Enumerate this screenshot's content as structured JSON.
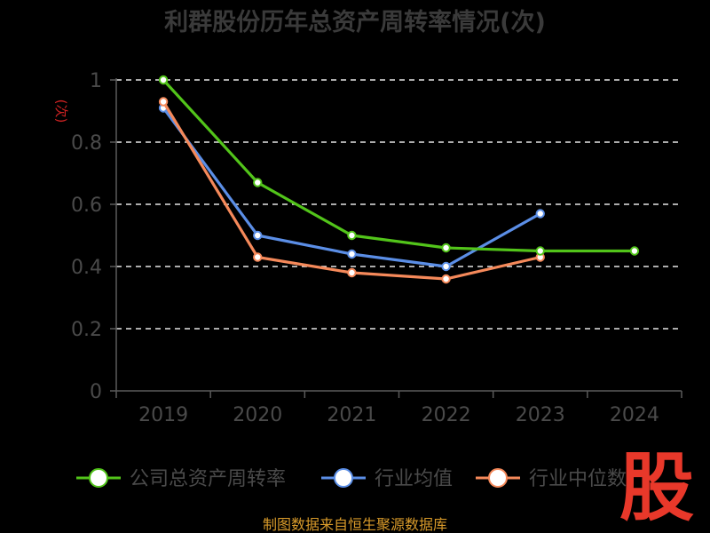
{
  "chart_data": {
    "type": "line",
    "title": "利群股份历年总资产周转率情况(次)",
    "ylabel": "(次)",
    "xlabel": "",
    "categories": [
      "2019",
      "2020",
      "2021",
      "2022",
      "2023",
      "2024"
    ],
    "ylim": [
      0,
      1
    ],
    "yticks": [
      "0",
      "0.2",
      "0.4",
      "0.6",
      "0.8",
      "1"
    ],
    "grid": true,
    "legend_position": "bottom",
    "series": [
      {
        "name": "公司总资产周转率",
        "color": "#52c41a",
        "values": [
          1.0,
          0.67,
          0.5,
          0.46,
          0.45,
          0.45
        ]
      },
      {
        "name": "行业均值",
        "color": "#5b8ee6",
        "values": [
          0.91,
          0.5,
          0.44,
          0.4,
          0.57,
          null
        ]
      },
      {
        "name": "行业中位数",
        "color": "#f5895a",
        "values": [
          0.93,
          0.43,
          0.38,
          0.36,
          0.43,
          null
        ]
      }
    ]
  },
  "source": "制图数据来自恒生聚源数据库",
  "watermark": "股"
}
